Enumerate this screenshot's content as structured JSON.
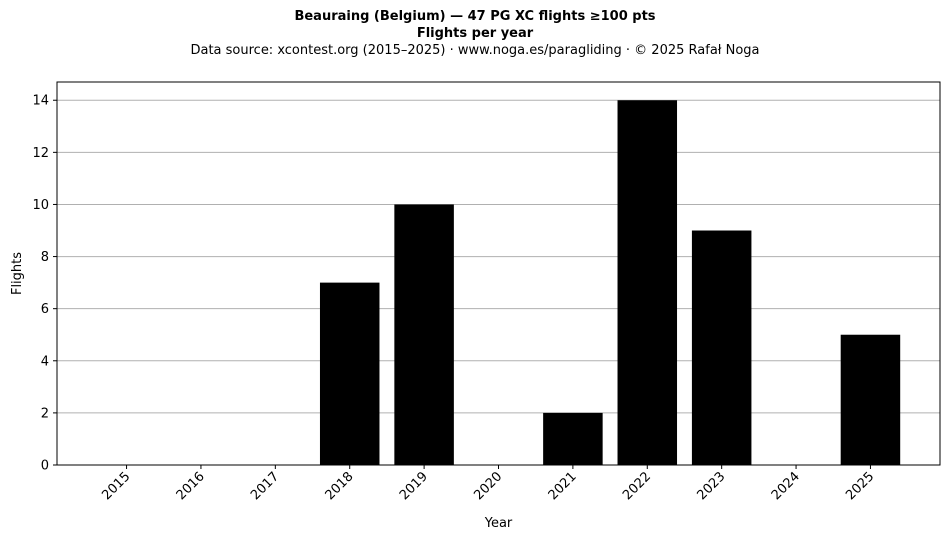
{
  "header": {
    "title": "Beauraing (Belgium)  —  47 PG XC flights ≥100 pts",
    "subtitle": "Flights per year",
    "source": "Data source: xcontest.org (2015–2025)  ·  www.noga.es/paragliding  ·  © 2025 Rafał Noga"
  },
  "chart_data": {
    "type": "bar",
    "title": "Beauraing (Belgium)  —  47 PG XC flights ≥100 pts",
    "subtitle": "Flights per year",
    "xlabel": "Year",
    "ylabel": "Flights",
    "categories": [
      "2015",
      "2016",
      "2017",
      "2018",
      "2019",
      "2020",
      "2021",
      "2022",
      "2023",
      "2024",
      "2025"
    ],
    "values": [
      0,
      0,
      0,
      7,
      10,
      0,
      2,
      14,
      9,
      0,
      5
    ],
    "ylim": [
      0,
      14.7
    ],
    "yticks": [
      0,
      2,
      4,
      6,
      8,
      10,
      12,
      14
    ],
    "grid": "y",
    "bar_color": "#000000",
    "grid_color": "#b0b0b0"
  }
}
